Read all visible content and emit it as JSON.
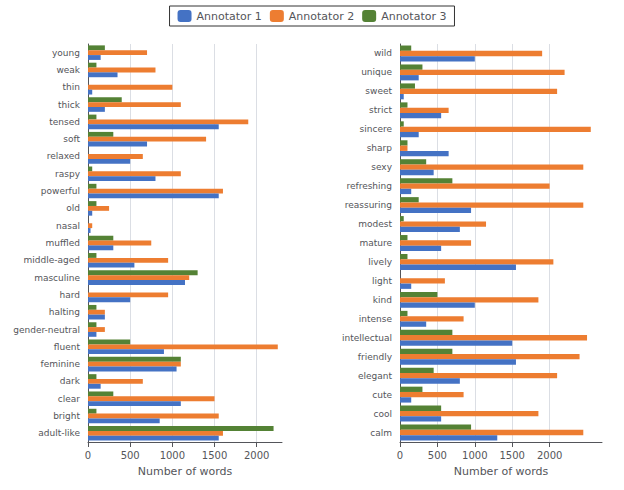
{
  "chart_data": [
    {
      "type": "bar",
      "orientation": "horizontal",
      "categories": [
        "young",
        "weak",
        "thin",
        "thick",
        "tensed",
        "soft",
        "relaxed",
        "raspy",
        "powerful",
        "old",
        "nasal",
        "muffled",
        "middle-aged",
        "masculine",
        "hard",
        "halting",
        "gender-neutral",
        "fluent",
        "feminine",
        "dark",
        "clear",
        "bright",
        "adult-like"
      ],
      "series": [
        {
          "name": "Annotator 1",
          "color": "#4472C4",
          "values": [
            150,
            350,
            50,
            200,
            1550,
            700,
            500,
            800,
            1550,
            50,
            30,
            300,
            550,
            1150,
            500,
            200,
            100,
            900,
            1050,
            150,
            1100,
            850,
            1550
          ]
        },
        {
          "name": "Annotator 2",
          "color": "#ED7D31",
          "values": [
            700,
            800,
            1000,
            1100,
            1900,
            1400,
            650,
            1100,
            1600,
            250,
            50,
            750,
            950,
            1200,
            950,
            200,
            200,
            2250,
            1100,
            650,
            1500,
            1550,
            1600
          ]
        },
        {
          "name": "Annotator 3",
          "color": "#548235",
          "values": [
            200,
            100,
            0,
            400,
            100,
            300,
            0,
            50,
            100,
            100,
            0,
            300,
            100,
            1300,
            0,
            100,
            100,
            500,
            1100,
            100,
            300,
            100,
            2200
          ]
        }
      ],
      "xlabel": "Number of words",
      "xlim": [
        0,
        2300
      ],
      "xticks": [
        0,
        500,
        1000,
        1500,
        2000
      ],
      "grid": true,
      "legend": "top"
    },
    {
      "type": "bar",
      "orientation": "horizontal",
      "categories": [
        "wild",
        "unique",
        "sweet",
        "strict",
        "sincere",
        "sharp",
        "sexy",
        "refreshing",
        "reassuring",
        "modest",
        "mature",
        "lively",
        "light",
        "kind",
        "intense",
        "intellectual",
        "friendly",
        "elegant",
        "cute",
        "cool",
        "calm"
      ],
      "series": [
        {
          "name": "Annotator 1",
          "color": "#4472C4",
          "values": [
            1000,
            250,
            50,
            550,
            250,
            650,
            450,
            150,
            950,
            800,
            550,
            1550,
            150,
            1000,
            350,
            1500,
            1550,
            800,
            150,
            550,
            1300
          ]
        },
        {
          "name": "Annotator 2",
          "color": "#ED7D31",
          "values": [
            1900,
            2200,
            2100,
            650,
            2550,
            100,
            2450,
            2000,
            2450,
            1150,
            950,
            2050,
            600,
            1850,
            850,
            2500,
            2400,
            2100,
            850,
            1850,
            2450
          ]
        },
        {
          "name": "Annotator 3",
          "color": "#548235",
          "values": [
            150,
            300,
            200,
            100,
            50,
            100,
            350,
            700,
            250,
            50,
            100,
            100,
            0,
            500,
            100,
            700,
            700,
            450,
            300,
            550,
            950
          ]
        }
      ],
      "xlabel": "Number of words",
      "xlim": [
        0,
        2700
      ],
      "xticks": [
        0,
        500,
        1000,
        1500,
        2000
      ],
      "grid": true
    }
  ]
}
